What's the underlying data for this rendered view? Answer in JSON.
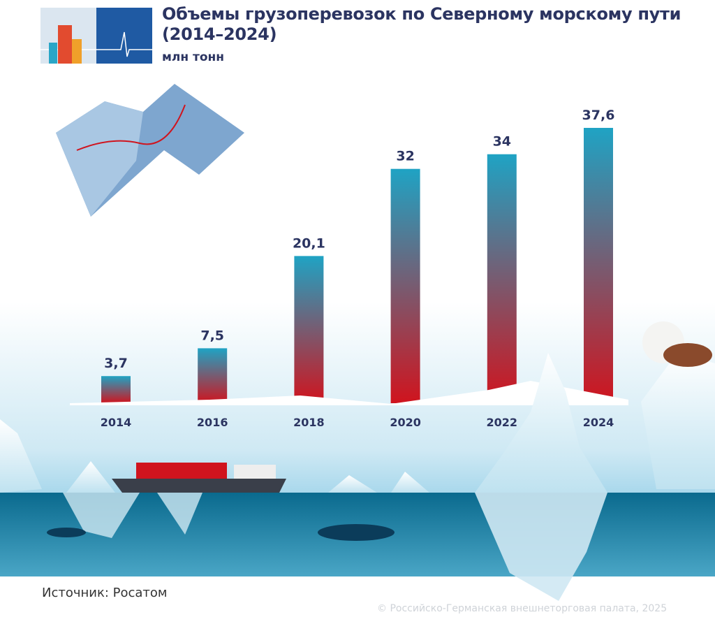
{
  "header": {
    "title_line1": "Объемы грузоперевозок по Северному морскому пути",
    "title_line2": "(2014–2024)",
    "unit": "млн тонн"
  },
  "footer": {
    "source": "Источник: Росатом",
    "copyright": "© Российско-Германская внешнеторговая палата, 2025"
  },
  "colors": {
    "bar_top": "#1fa3c4",
    "bar_bottom": "#d0141e",
    "title": "#2b3461",
    "ocean": "#0d6f92"
  },
  "chart_data": {
    "type": "bar",
    "title": "Объемы грузоперевозок по Северному морскому пути (2014–2024)",
    "ylabel": "млн тонн",
    "categories": [
      "2014",
      "2016",
      "2018",
      "2020",
      "2022",
      "2024"
    ],
    "values": [
      3.7,
      7.5,
      20.1,
      32,
      34,
      37.6
    ],
    "value_labels": [
      "3,7",
      "7,5",
      "20,1",
      "32",
      "34",
      "37,6"
    ],
    "ylim": [
      0,
      40
    ],
    "grid": false,
    "legend": "none"
  }
}
